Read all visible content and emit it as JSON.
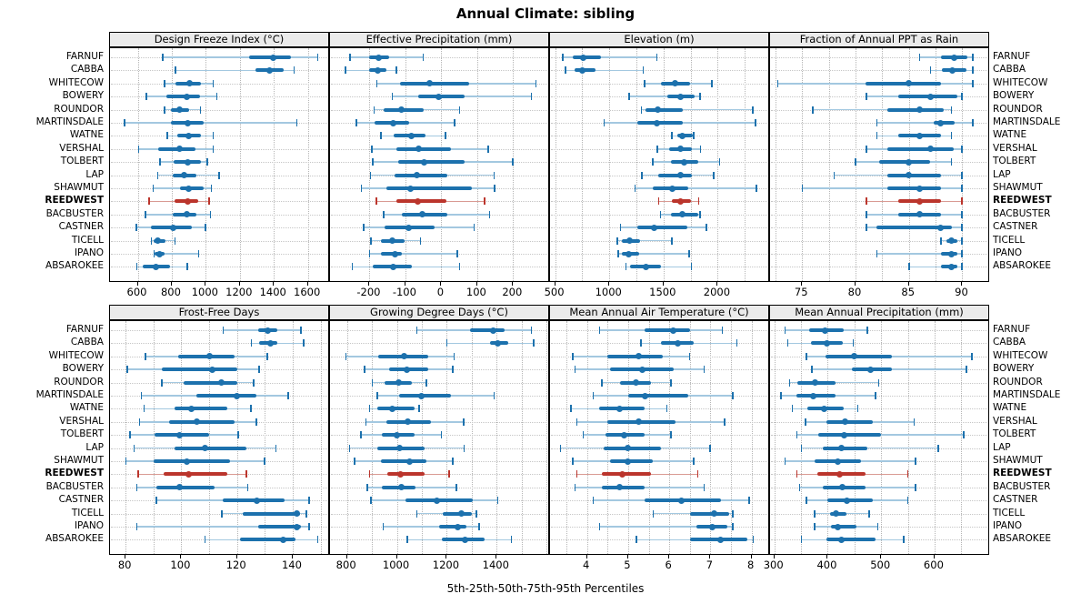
{
  "title": "Annual Climate: sibling",
  "footer_label": "5th-25th-50th-75th-95th Percentiles",
  "stations": [
    "FARNUF",
    "CABBA",
    "WHITECOW",
    "BOWERY",
    "ROUNDOR",
    "MARTINSDALE",
    "WATNE",
    "VERSHAL",
    "TOLBERT",
    "LAP",
    "SHAWMUT",
    "REEDWEST",
    "BACBUSTER",
    "CASTNER",
    "TICELL",
    "IPANO",
    "ABSAROKEE"
  ],
  "highlight_station": "REEDWEST",
  "colors": {
    "series": "#1c71ad",
    "series_light": "#a3c8e0",
    "highlight": "#bb352c",
    "highlight_light": "#d99a93",
    "grid": "#b5b5b5",
    "strip_bg": "#ebebeb"
  },
  "chart_data": [
    {
      "type": "interval-dotplot",
      "title": "Design Freeze Index (°C)",
      "percentiles": [
        5,
        25,
        50,
        75,
        95
      ],
      "xlim": [
        437,
        1730
      ],
      "ticks": [
        600,
        800,
        1000,
        1200,
        1400,
        1600
      ],
      "gridlines": [
        600,
        800,
        1000,
        1200,
        1400,
        1600
      ],
      "values": [
        [
          745,
          1255,
          1395,
          1500,
          1660
        ],
        [
          820,
          1290,
          1375,
          1460,
          1520
        ],
        [
          755,
          820,
          905,
          970,
          1045
        ],
        [
          650,
          767,
          890,
          965,
          1065
        ],
        [
          755,
          795,
          845,
          900,
          970
        ],
        [
          520,
          795,
          895,
          985,
          1535
        ],
        [
          772,
          830,
          900,
          970,
          1045
        ],
        [
          605,
          720,
          845,
          940,
          1045
        ],
        [
          730,
          812,
          895,
          970,
          1010
        ],
        [
          715,
          805,
          870,
          945,
          1080
        ],
        [
          690,
          848,
          900,
          985,
          1035
        ],
        [
          665,
          818,
          895,
          955,
          1020
        ],
        [
          645,
          805,
          890,
          945,
          1030
        ],
        [
          590,
          680,
          810,
          920,
          1000
        ],
        [
          680,
          695,
          720,
          765,
          820
        ],
        [
          695,
          700,
          728,
          758,
          960
        ],
        [
          593,
          632,
          705,
          790,
          893
        ]
      ]
    },
    {
      "type": "interval-dotplot",
      "title": "Effective Precipitation (mm)",
      "percentiles": [
        5,
        25,
        50,
        75,
        95
      ],
      "xlim": [
        -310,
        303
      ],
      "ticks": [
        -200,
        -100,
        0,
        100,
        200
      ],
      "gridlines": [
        -200,
        -100,
        0,
        100,
        200,
        300
      ],
      "values": [
        [
          -255,
          -200,
          -175,
          -145,
          -50
        ],
        [
          -268,
          -202,
          -176,
          -152,
          -125
        ],
        [
          -180,
          -115,
          -33,
          77,
          264
        ],
        [
          -137,
          -65,
          -7,
          64,
          252
        ],
        [
          -188,
          -160,
          -112,
          -48,
          52
        ],
        [
          -237,
          -185,
          -133,
          -90,
          38
        ],
        [
          -169,
          -132,
          -84,
          -44,
          12
        ],
        [
          -194,
          -125,
          -62,
          27,
          131
        ],
        [
          -192,
          -121,
          -47,
          64,
          200
        ],
        [
          -198,
          -130,
          -69,
          16,
          148
        ],
        [
          -223,
          -152,
          -86,
          85,
          149
        ],
        [
          -182,
          -125,
          -65,
          14,
          121
        ],
        [
          -161,
          -111,
          -52,
          18,
          135
        ],
        [
          -217,
          -157,
          -92,
          -19,
          92
        ],
        [
          -197,
          -169,
          -137,
          -102,
          -57
        ],
        [
          -200,
          -169,
          -130,
          -111,
          45
        ],
        [
          -248,
          -190,
          -133,
          -83,
          52
        ]
      ]
    },
    {
      "type": "interval-dotplot",
      "title": "Elevation (m)",
      "percentiles": [
        5,
        25,
        50,
        75,
        95
      ],
      "xlim": [
        453,
        2483
      ],
      "ticks": [
        500,
        1000,
        1500,
        2000
      ],
      "gridlines": [
        500,
        750,
        1000,
        1250,
        1500,
        1750,
        2000,
        2250
      ],
      "values": [
        [
          570,
          660,
          755,
          925,
          1440
        ],
        [
          595,
          680,
          750,
          870,
          1315
        ],
        [
          1325,
          1480,
          1605,
          1745,
          1950
        ],
        [
          1180,
          1535,
          1660,
          1790,
          1840
        ],
        [
          1295,
          1330,
          1450,
          1680,
          2325
        ],
        [
          950,
          1255,
          1435,
          1675,
          2350
        ],
        [
          1575,
          1625,
          1675,
          1770,
          1780
        ],
        [
          1440,
          1555,
          1655,
          1760,
          1845
        ],
        [
          1400,
          1565,
          1690,
          1820,
          2020
        ],
        [
          1300,
          1450,
          1655,
          1765,
          1965
        ],
        [
          1235,
          1405,
          1585,
          1725,
          2360
        ],
        [
          1455,
          1580,
          1655,
          1750,
          1825
        ],
        [
          1470,
          1570,
          1675,
          1820,
          1840
        ],
        [
          1100,
          1255,
          1410,
          1720,
          1900
        ],
        [
          1070,
          1112,
          1190,
          1280,
          1578
        ],
        [
          1080,
          1112,
          1175,
          1275,
          1740
        ],
        [
          1150,
          1190,
          1340,
          1480,
          1760
        ]
      ]
    },
    {
      "type": "interval-dotplot",
      "title": "Fraction of Annual PPT as Rain",
      "percentiles": [
        5,
        25,
        50,
        75,
        95
      ],
      "xlim": [
        72,
        92.6
      ],
      "ticks": [
        75,
        80,
        85,
        90
      ],
      "gridlines": [
        72.5,
        75,
        77.5,
        80,
        82.5,
        85,
        87.5,
        90,
        92.5
      ],
      "values": [
        [
          86,
          88,
          89.2,
          90.5,
          91
        ],
        [
          87,
          88.1,
          89.1,
          90.4,
          91
        ],
        [
          72.7,
          80.9,
          85,
          88,
          91
        ],
        [
          81,
          84,
          87,
          89.5,
          90
        ],
        [
          76,
          83,
          86,
          88.3,
          89
        ],
        [
          82,
          87.3,
          88,
          89.3,
          91
        ],
        [
          82,
          84,
          86,
          88,
          89
        ],
        [
          81,
          83,
          87,
          89.2,
          90
        ],
        [
          80,
          82.2,
          85,
          87,
          89
        ],
        [
          78,
          83,
          85,
          88,
          90
        ],
        [
          75,
          83,
          86,
          88,
          90
        ],
        [
          81,
          84,
          86,
          88,
          90
        ],
        [
          81,
          84,
          86,
          88,
          90
        ],
        [
          81,
          82,
          88,
          89,
          90
        ],
        [
          88,
          88.5,
          89,
          89.5,
          90
        ],
        [
          82,
          88,
          89,
          89.5,
          90
        ],
        [
          85,
          88,
          89,
          89.5,
          90
        ]
      ]
    },
    {
      "type": "interval-dotplot",
      "title": "Frost-Free Days",
      "percentiles": [
        5,
        25,
        50,
        75,
        95
      ],
      "xlim": [
        74.4,
        153.4
      ],
      "ticks": [
        80,
        100,
        120,
        140
      ],
      "gridlines": [
        80,
        90,
        100,
        110,
        120,
        130,
        140,
        150
      ],
      "values": [
        [
          115,
          127.5,
          131,
          134.5,
          143
        ],
        [
          125,
          128,
          132,
          134.5,
          144
        ],
        [
          87,
          99,
          110,
          119,
          131
        ],
        [
          80.5,
          93,
          111,
          120,
          128
        ],
        [
          93,
          101,
          114.5,
          120,
          126
        ],
        [
          85.5,
          105.5,
          120,
          127,
          138.5
        ],
        [
          86.5,
          97.5,
          103.5,
          116.5,
          125
        ],
        [
          85,
          95.5,
          105.5,
          119,
          127
        ],
        [
          81.5,
          90.5,
          99.5,
          110,
          120.5
        ],
        [
          83,
          97.5,
          108.5,
          123.5,
          134
        ],
        [
          80,
          90,
          102,
          117.5,
          130
        ],
        [
          84.5,
          93.5,
          102.5,
          116.5,
          123.5
        ],
        [
          84,
          91,
          99.5,
          112,
          124
        ],
        [
          91,
          115,
          127,
          137,
          146
        ],
        [
          114.5,
          122,
          141.5,
          142.5,
          145
        ],
        [
          84,
          127.5,
          141.5,
          143,
          146
        ],
        [
          108.5,
          121,
          136.5,
          141,
          149
        ]
      ]
    },
    {
      "type": "interval-dotplot",
      "title": "Growing Degree Days (°C)",
      "percentiles": [
        5,
        25,
        50,
        75,
        95
      ],
      "xlim": [
        732,
        1614
      ],
      "ticks": [
        800,
        1000,
        1200,
        1400
      ],
      "gridlines": [
        800,
        900,
        1000,
        1100,
        1200,
        1300,
        1400,
        1500,
        1600
      ],
      "values": [
        [
          1080,
          1295,
          1385,
          1430,
          1540
        ],
        [
          1200,
          1372,
          1405,
          1445,
          1550
        ],
        [
          795,
          925,
          1030,
          1125,
          1230
        ],
        [
          870,
          970,
          1040,
          1125,
          1225
        ],
        [
          900,
          952,
          1006,
          1060,
          1120
        ],
        [
          920,
          1010,
          1100,
          1215,
          1390
        ],
        [
          890,
          922,
          982,
          1072,
          1090
        ],
        [
          875,
          958,
          1042,
          1138,
          1268
        ],
        [
          855,
          940,
          1000,
          1070,
          1180
        ],
        [
          810,
          920,
          1010,
          1110,
          1270
        ],
        [
          830,
          935,
          1050,
          1120,
          1225
        ],
        [
          890,
          960,
          1015,
          1110,
          1210
        ],
        [
          880,
          940,
          1018,
          1074,
          1240
        ],
        [
          895,
          1035,
          1160,
          1305,
          1405
        ],
        [
          1080,
          1185,
          1258,
          1300,
          1320
        ],
        [
          945,
          1170,
          1245,
          1280,
          1330
        ],
        [
          1040,
          1180,
          1275,
          1350,
          1460
        ]
      ]
    },
    {
      "type": "interval-dotplot",
      "title": "Mean Annual Air Temperature (°C)",
      "percentiles": [
        5,
        25,
        50,
        75,
        95
      ],
      "xlim": [
        3.1,
        8.45
      ],
      "ticks": [
        4,
        5,
        6,
        7,
        8
      ],
      "gridlines": [
        3.5,
        4,
        4.5,
        5,
        5.5,
        6,
        6.5,
        7,
        7.5,
        8
      ],
      "values": [
        [
          4.3,
          5.4,
          6.1,
          6.5,
          7.3
        ],
        [
          5.3,
          5.8,
          6.2,
          6.6,
          7.65
        ],
        [
          3.65,
          4.5,
          5.25,
          5.85,
          6.5
        ],
        [
          3.7,
          4.55,
          5.35,
          6.1,
          6.85
        ],
        [
          4.35,
          4.8,
          5.2,
          5.55,
          6.05
        ],
        [
          4.15,
          5.0,
          5.4,
          6.45,
          7.55
        ],
        [
          3.6,
          4.3,
          4.8,
          5.4,
          5.95
        ],
        [
          3.75,
          4.5,
          5.25,
          6.15,
          7.35
        ],
        [
          3.9,
          4.45,
          4.9,
          5.4,
          6.05
        ],
        [
          3.35,
          4.4,
          5.0,
          5.8,
          7.0
        ],
        [
          3.65,
          4.55,
          5.0,
          5.6,
          6.6
        ],
        [
          3.75,
          4.35,
          4.85,
          5.55,
          6.7
        ],
        [
          3.7,
          4.35,
          4.8,
          5.4,
          6.85
        ],
        [
          4.15,
          5.4,
          6.3,
          7.25,
          7.95
        ],
        [
          5.6,
          6.5,
          7.1,
          7.45,
          7.55
        ],
        [
          4.3,
          6.65,
          7.05,
          7.4,
          7.55
        ],
        [
          5.2,
          6.5,
          7.25,
          7.9,
          8.05
        ]
      ]
    },
    {
      "type": "interval-dotplot",
      "title": "Mean Annual Precipitation (mm)",
      "percentiles": [
        5,
        25,
        50,
        75,
        95
      ],
      "xlim": [
        292,
        704
      ],
      "ticks": [
        300,
        400,
        500,
        600
      ],
      "gridlines": [
        300,
        350,
        400,
        450,
        500,
        550,
        600,
        650,
        700
      ],
      "values": [
        [
          320,
          365,
          395,
          430,
          475
        ],
        [
          325,
          368,
          398,
          428,
          448
        ],
        [
          360,
          395,
          450,
          520,
          670
        ],
        [
          370,
          445,
          480,
          520,
          660
        ],
        [
          328,
          343,
          376,
          414,
          496
        ],
        [
          312,
          342,
          373,
          415,
          490
        ],
        [
          333,
          362,
          394,
          430,
          457
        ],
        [
          358,
          398,
          432,
          485,
          562
        ],
        [
          342,
          382,
          430,
          500,
          655
        ],
        [
          350,
          390,
          425,
          475,
          607
        ],
        [
          320,
          375,
          418,
          462,
          565
        ],
        [
          342,
          380,
          423,
          470,
          550
        ],
        [
          347,
          390,
          428,
          470,
          565
        ],
        [
          360,
          400,
          436,
          484,
          550
        ],
        [
          375,
          404,
          416,
          435,
          478
        ],
        [
          375,
          406,
          418,
          454,
          494
        ],
        [
          350,
          398,
          426,
          490,
          543
        ]
      ]
    }
  ]
}
